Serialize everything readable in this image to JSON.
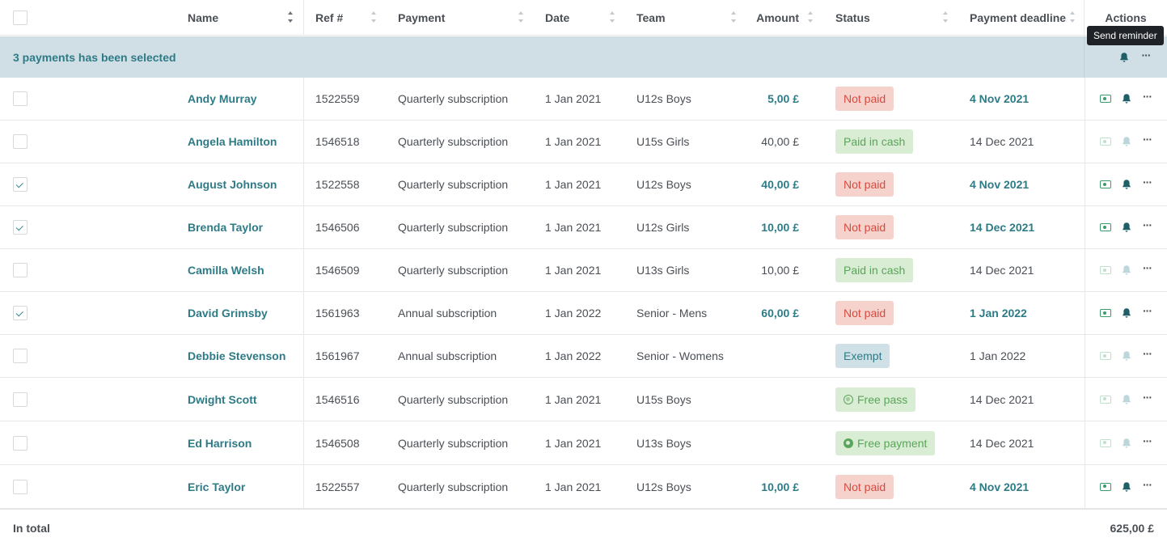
{
  "header": {
    "name": "Name",
    "ref": "Ref #",
    "payment": "Payment",
    "date": "Date",
    "team": "Team",
    "amount": "Amount",
    "status": "Status",
    "deadline": "Payment deadline",
    "actions": "Actions"
  },
  "selection": {
    "text": "3 payments has been selected",
    "tooltip": "Send reminder"
  },
  "rows": [
    {
      "checked": false,
      "name": "Andy Murray",
      "ref": "1522559",
      "payment": "Quarterly subscription",
      "date": "1 Jan 2021",
      "team": "U12s Boys",
      "amount": "5,00 £",
      "amount_due": true,
      "status": "Not paid",
      "status_kind": "notpaid",
      "deadline": "4 Nov 2021",
      "deadline_due": true,
      "actions_active": true
    },
    {
      "checked": false,
      "name": "Angela Hamilton",
      "ref": "1546518",
      "payment": "Quarterly subscription",
      "date": "1 Jan 2021",
      "team": "U15s Girls",
      "amount": "40,00 £",
      "amount_due": false,
      "status": "Paid in cash",
      "status_kind": "cash",
      "deadline": "14 Dec 2021",
      "deadline_due": false,
      "actions_active": false
    },
    {
      "checked": true,
      "name": "August Johnson",
      "ref": "1522558",
      "payment": "Quarterly subscription",
      "date": "1 Jan 2021",
      "team": "U12s Boys",
      "amount": "40,00 £",
      "amount_due": true,
      "status": "Not paid",
      "status_kind": "notpaid",
      "deadline": "4 Nov 2021",
      "deadline_due": true,
      "actions_active": true
    },
    {
      "checked": true,
      "name": "Brenda Taylor",
      "ref": "1546506",
      "payment": "Quarterly subscription",
      "date": "1 Jan 2021",
      "team": "U12s Girls",
      "amount": "10,00 £",
      "amount_due": true,
      "status": "Not paid",
      "status_kind": "notpaid",
      "deadline": "14 Dec 2021",
      "deadline_due": true,
      "actions_active": true
    },
    {
      "checked": false,
      "name": "Camilla Welsh",
      "ref": "1546509",
      "payment": "Quarterly subscription",
      "date": "1 Jan 2021",
      "team": "U13s Girls",
      "amount": "10,00 £",
      "amount_due": false,
      "status": "Paid in cash",
      "status_kind": "cash",
      "deadline": "14 Dec 2021",
      "deadline_due": false,
      "actions_active": false
    },
    {
      "checked": true,
      "name": "David Grimsby",
      "ref": "1561963",
      "payment": "Annual subscription",
      "date": "1 Jan 2022",
      "team": "Senior - Mens",
      "amount": "60,00 £",
      "amount_due": true,
      "status": "Not paid",
      "status_kind": "notpaid",
      "deadline": "1 Jan 2022",
      "deadline_due": true,
      "actions_active": true
    },
    {
      "checked": false,
      "name": "Debbie Stevenson",
      "ref": "1561967",
      "payment": "Annual subscription",
      "date": "1 Jan 2022",
      "team": "Senior - Womens",
      "amount": "",
      "amount_due": false,
      "status": "Exempt",
      "status_kind": "exempt",
      "deadline": "1 Jan 2022",
      "deadline_due": false,
      "actions_active": false
    },
    {
      "checked": false,
      "name": "Dwight Scott",
      "ref": "1546516",
      "payment": "Quarterly subscription",
      "date": "1 Jan 2021",
      "team": "U15s Boys",
      "amount": "",
      "amount_due": false,
      "status": "Free pass",
      "status_kind": "freepass",
      "deadline": "14 Dec 2021",
      "deadline_due": false,
      "actions_active": false
    },
    {
      "checked": false,
      "name": "Ed Harrison",
      "ref": "1546508",
      "payment": "Quarterly subscription",
      "date": "1 Jan 2021",
      "team": "U13s Boys",
      "amount": "",
      "amount_due": false,
      "status": "Free payment",
      "status_kind": "freepayment",
      "deadline": "14 Dec 2021",
      "deadline_due": false,
      "actions_active": false
    },
    {
      "checked": false,
      "name": "Eric Taylor",
      "ref": "1522557",
      "payment": "Quarterly subscription",
      "date": "1 Jan 2021",
      "team": "U12s Boys",
      "amount": "10,00 £",
      "amount_due": true,
      "status": "Not paid",
      "status_kind": "notpaid",
      "deadline": "4 Nov 2021",
      "deadline_due": true,
      "actions_active": true
    }
  ],
  "footer": {
    "label": "In total",
    "value": "625,00 £"
  },
  "colors": {
    "accent": "#2e7b86",
    "selection_bar": "#cfdfe5",
    "not_paid_bg": "#f6d2cd",
    "not_paid_text": "#d54b3f",
    "paid_bg": "#d9ecd4",
    "paid_text": "#5ba55a",
    "exempt_bg": "#cfe0e6"
  },
  "icons": {
    "sort": "sort-icon",
    "mark_paid": "money-icon",
    "reminder": "bell-icon",
    "more": "more-icon",
    "free": "free-icon"
  }
}
